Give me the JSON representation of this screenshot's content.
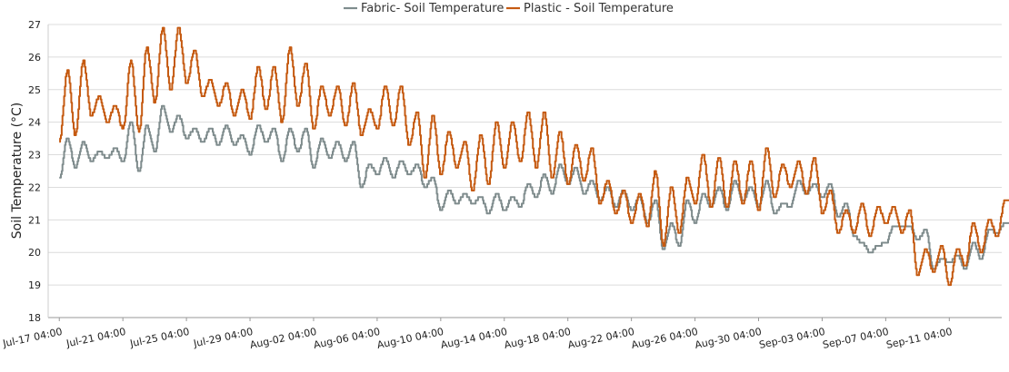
{
  "chart_data": {
    "type": "line",
    "title": "",
    "xlabel": "",
    "ylabel": "Soil Temperature (°C)",
    "ylim": [
      18,
      27
    ],
    "yticks": [
      "18",
      "19",
      "20",
      "21",
      "22",
      "23",
      "24",
      "25",
      "26",
      "27"
    ],
    "xtick_labels": [
      "Jul-17 04:00",
      "Jul-21 04:00",
      "Jul-25 04:00",
      "Jul-29 04:00",
      "Aug-02 04:00",
      "Aug-06 04:00",
      "Aug-10 04:00",
      "Aug-14 04:00",
      "Aug-18 04:00",
      "Aug-22 04:00",
      "Aug-26 04:00",
      "Aug-30 04:00",
      "Sep-03 04:00",
      "Sep-07 04:00",
      "Sep-11 04:00"
    ],
    "grid": true,
    "legend": "top-center",
    "x_unit": "day",
    "x": [
      0.0,
      0.5,
      1.0,
      1.5,
      2.0,
      2.5,
      3.0,
      3.5,
      4.0,
      4.5,
      5.0,
      5.5,
      6.0,
      6.5,
      7.0,
      7.5,
      8.0,
      8.5,
      9.0,
      9.5,
      10.0,
      10.5,
      11.0,
      11.5,
      12.0,
      12.5,
      13.0,
      13.5,
      14.0,
      14.5,
      15.0,
      15.5,
      16.0,
      16.5,
      17.0,
      17.5,
      18.0,
      18.5,
      19.0,
      19.5,
      20.0,
      20.5,
      21.0,
      21.5,
      22.0,
      22.5,
      23.0,
      23.5,
      24.0,
      24.5,
      25.0,
      25.5,
      26.0,
      26.5,
      27.0,
      27.5,
      28.0,
      28.5,
      29.0,
      29.5,
      30.0,
      30.5,
      31.0,
      31.5,
      32.0,
      32.5,
      33.0,
      33.5,
      34.0,
      34.5,
      35.0,
      35.5,
      36.0,
      36.5,
      37.0,
      37.5,
      38.0,
      38.5,
      39.0,
      39.5,
      40.0,
      40.5,
      41.0,
      41.5,
      42.0,
      42.5,
      43.0,
      43.5,
      44.0,
      44.5,
      45.0,
      45.5,
      46.0,
      46.5,
      47.0,
      47.5,
      48.0,
      48.5,
      49.0,
      49.5,
      50.0,
      50.5,
      51.0,
      51.5,
      52.0,
      52.5,
      53.0,
      53.5,
      54.0,
      54.5,
      55.0,
      55.5,
      56.0,
      56.5,
      57.0,
      57.5,
      58.0,
      58.5,
      59.0,
      59.5
    ],
    "x_tick_positions": [
      0,
      4,
      8,
      12,
      16,
      20,
      24,
      28,
      32,
      36,
      40,
      44,
      48,
      52,
      56
    ],
    "x_start_offset": -0.7,
    "x_end": 59.3,
    "series": [
      {
        "name": "Fabric- Soil Temperature",
        "color": "#7f8c8d",
        "values": [
          22.3,
          23.5,
          22.6,
          23.4,
          22.8,
          23.1,
          22.9,
          23.2,
          22.8,
          24.0,
          22.5,
          23.9,
          23.1,
          24.5,
          23.7,
          24.2,
          23.5,
          23.8,
          23.4,
          23.8,
          23.3,
          23.9,
          23.3,
          23.6,
          23.0,
          23.9,
          23.4,
          23.8,
          22.8,
          23.8,
          23.1,
          23.8,
          22.6,
          23.5,
          22.9,
          23.4,
          22.8,
          23.4,
          22.0,
          22.7,
          22.4,
          22.9,
          22.3,
          22.8,
          22.4,
          22.7,
          22.0,
          22.3,
          21.3,
          21.9,
          21.5,
          21.8,
          21.5,
          21.7,
          21.2,
          21.8,
          21.3,
          21.7,
          21.4,
          22.1,
          21.7,
          22.4,
          21.8,
          22.7,
          22.1,
          22.6,
          21.8,
          22.2,
          21.6,
          22.0,
          21.4,
          21.9,
          21.3,
          21.7,
          20.9,
          21.6,
          20.1,
          20.9,
          20.2,
          21.6,
          20.9,
          21.8,
          21.4,
          22.0,
          21.3,
          22.2,
          21.6,
          22.0,
          21.4,
          22.2,
          21.2,
          21.5,
          21.4,
          22.2,
          21.8,
          22.1,
          21.7,
          22.1,
          21.1,
          21.5,
          20.5,
          20.3,
          20.0,
          20.2,
          20.3,
          20.8,
          20.8,
          20.8,
          20.4,
          20.7,
          19.5,
          19.8,
          19.7,
          19.9,
          19.5,
          20.3,
          19.8,
          20.7,
          20.6,
          20.9
        ]
      },
      {
        "name": "Plastic - Soil Temperature",
        "color": "#c55a11",
        "values": [
          23.4,
          25.6,
          23.6,
          25.9,
          24.2,
          24.8,
          24.0,
          24.5,
          23.8,
          25.9,
          23.7,
          26.3,
          24.6,
          26.9,
          25.0,
          26.9,
          25.2,
          26.2,
          24.8,
          25.3,
          24.5,
          25.2,
          24.2,
          25.0,
          24.1,
          25.7,
          24.4,
          25.7,
          24.0,
          26.3,
          24.5,
          25.8,
          23.8,
          25.1,
          24.2,
          25.1,
          23.9,
          25.2,
          23.6,
          24.4,
          23.8,
          25.1,
          23.9,
          25.1,
          23.3,
          24.3,
          22.3,
          24.2,
          22.4,
          23.7,
          22.6,
          23.4,
          21.9,
          23.6,
          22.1,
          24.0,
          22.6,
          24.0,
          22.8,
          24.3,
          22.6,
          24.3,
          22.3,
          23.7,
          22.1,
          23.3,
          22.2,
          23.2,
          21.5,
          22.2,
          21.2,
          21.9,
          20.9,
          21.8,
          20.8,
          22.5,
          20.2,
          22.0,
          20.6,
          22.3,
          21.5,
          23.0,
          21.4,
          22.9,
          21.4,
          22.8,
          21.5,
          22.8,
          21.3,
          23.2,
          21.7,
          22.7,
          22.0,
          22.8,
          21.8,
          22.9,
          21.2,
          21.9,
          20.6,
          21.3,
          20.6,
          21.5,
          20.5,
          21.4,
          20.9,
          21.4,
          20.6,
          21.3,
          19.3,
          20.1,
          19.4,
          20.2,
          19.0,
          20.1,
          19.6,
          20.9,
          20.0,
          21.0,
          20.5,
          21.6
        ]
      }
    ]
  }
}
